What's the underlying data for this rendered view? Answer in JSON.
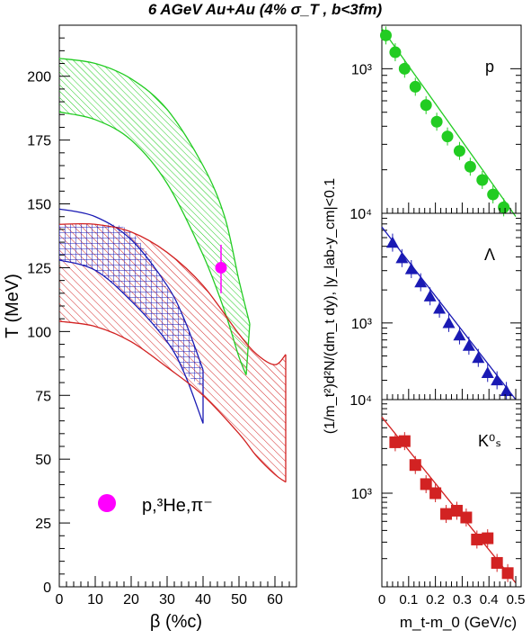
{
  "title": "6 AGeV Au+Au (4% σ_T , b<3fm)",
  "colors": {
    "green": "#22cc22",
    "blue": "#1a1ab4",
    "red": "#d22222",
    "magenta": "#ff00ff"
  },
  "chart_data": [
    {
      "type": "area",
      "xlabel": "β (%c)",
      "ylabel": "T (MeV)",
      "xlim": [
        0,
        66
      ],
      "ylim": [
        0,
        220
      ],
      "xticks": [
        0,
        10,
        20,
        30,
        40,
        50,
        60
      ],
      "yticks": [
        0,
        25,
        50,
        75,
        100,
        125,
        150,
        175,
        200
      ],
      "bands": [
        {
          "color": "green",
          "upper": [
            [
              0,
              207
            ],
            [
              10,
              205
            ],
            [
              20,
              199
            ],
            [
              30,
              187
            ],
            [
              40,
              165
            ],
            [
              46,
              145
            ],
            [
              50,
              120
            ],
            [
              53,
              103
            ]
          ],
          "lower": [
            [
              0,
              186
            ],
            [
              10,
              183
            ],
            [
              20,
              175
            ],
            [
              30,
              158
            ],
            [
              40,
              130
            ],
            [
              46,
              108
            ],
            [
              50,
              90
            ],
            [
              52,
              83
            ]
          ]
        },
        {
          "color": "blue",
          "upper": [
            [
              0,
              148
            ],
            [
              10,
              145
            ],
            [
              20,
              136
            ],
            [
              30,
              118
            ],
            [
              35,
              104
            ],
            [
              40,
              85
            ]
          ],
          "lower": [
            [
              0,
              128
            ],
            [
              10,
              124
            ],
            [
              20,
              112
            ],
            [
              30,
              96
            ],
            [
              35,
              83
            ],
            [
              40,
              64
            ]
          ]
        },
        {
          "color": "red",
          "upper": [
            [
              0,
              142
            ],
            [
              10,
              142
            ],
            [
              20,
              139
            ],
            [
              30,
              131
            ],
            [
              40,
              118
            ],
            [
              50,
              99
            ],
            [
              55,
              91
            ],
            [
              60,
              87
            ],
            [
              63,
              91
            ]
          ],
          "lower": [
            [
              0,
              104
            ],
            [
              10,
              102
            ],
            [
              20,
              96
            ],
            [
              30,
              86
            ],
            [
              40,
              75
            ],
            [
              50,
              60
            ],
            [
              55,
              51
            ],
            [
              60,
              44
            ],
            [
              63,
              41
            ]
          ]
        }
      ],
      "overlap_region": {
        "upper": [
          [
            0,
            142
          ],
          [
            10,
            142
          ],
          [
            20,
            139
          ],
          [
            30,
            117
          ],
          [
            35,
            104
          ],
          [
            40,
            85
          ]
        ],
        "lower": [
          [
            0,
            128
          ],
          [
            10,
            124
          ],
          [
            20,
            112
          ],
          [
            30,
            96
          ],
          [
            35,
            84
          ],
          [
            40,
            78
          ]
        ]
      },
      "point": {
        "x": 45,
        "y": 125,
        "yerr": [
          115,
          134
        ],
        "color": "magenta"
      },
      "legend": {
        "label": "p,³He,π⁻",
        "position": "bottom-left"
      }
    },
    {
      "type": "scatter",
      "panel": "p",
      "label": "p",
      "yscale": "log",
      "ylim": [
        100,
        2000
      ],
      "yticklabel": "10³",
      "marker": "circle",
      "color": "green",
      "x": [
        0.015,
        0.05,
        0.085,
        0.125,
        0.165,
        0.205,
        0.245,
        0.29,
        0.33,
        0.375,
        0.415,
        0.455
      ],
      "y": [
        1700,
        1300,
        1000,
        750,
        560,
        430,
        340,
        270,
        210,
        170,
        135,
        110
      ],
      "fit": [
        [
          0,
          1900
        ],
        [
          0.5,
          95
        ]
      ]
    },
    {
      "type": "scatter",
      "panel": "lambda",
      "label": "Λ",
      "yscale": "log",
      "ylim": [
        200,
        10000
      ],
      "yticklabels": [
        "10⁴",
        "10³"
      ],
      "marker": "triangle",
      "color": "blue",
      "x": [
        0.04,
        0.075,
        0.11,
        0.145,
        0.18,
        0.215,
        0.25,
        0.29,
        0.325,
        0.36,
        0.395,
        0.43,
        0.465
      ],
      "y": [
        5400,
        3900,
        3100,
        2350,
        1750,
        1350,
        1000,
        770,
        620,
        480,
        350,
        300,
        240
      ],
      "fit": [
        [
          0,
          7500
        ],
        [
          0.5,
          200
        ]
      ]
    },
    {
      "type": "scatter",
      "panel": "k0s",
      "label": "K⁰ₛ",
      "yscale": "log",
      "ylim": [
        100,
        10000
      ],
      "yticklabels": [
        "10⁴",
        "10³"
      ],
      "marker": "square",
      "color": "red",
      "xlabel": "m_t-m_0 (GeV/c)",
      "xlim": [
        0,
        0.52
      ],
      "xticks": [
        0,
        0.1,
        0.2,
        0.3,
        0.4,
        0.5
      ],
      "xticklabels": [
        "0",
        "0.1",
        "0.2",
        "0.3",
        "0.4",
        "0.5"
      ],
      "x": [
        0.05,
        0.085,
        0.125,
        0.165,
        0.2,
        0.24,
        0.28,
        0.315,
        0.355,
        0.395,
        0.43,
        0.47
      ],
      "y": [
        3500,
        3600,
        2000,
        1250,
        1000,
        600,
        650,
        550,
        320,
        330,
        180,
        140
      ],
      "fit": [
        [
          0,
          6500
        ],
        [
          0.5,
          110
        ]
      ]
    }
  ],
  "shared_ylabel": "(1/m_t²)d²N/(dm_t dy), |y_lab-y_cm|<0.1"
}
